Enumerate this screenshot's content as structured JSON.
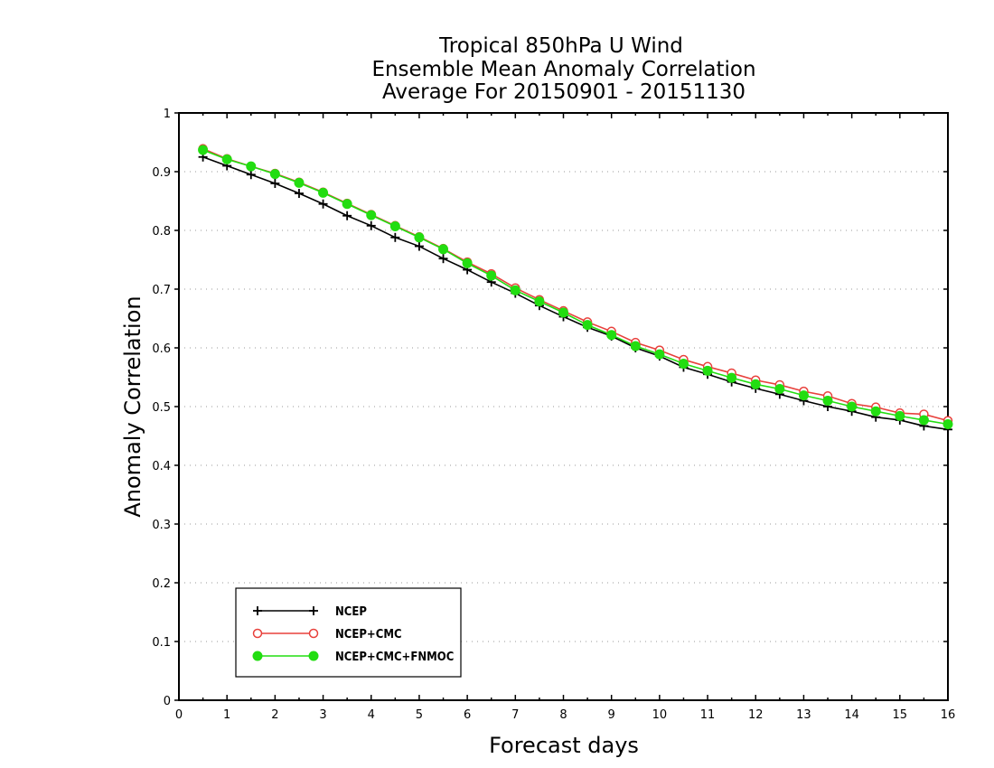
{
  "chart_data": {
    "type": "line",
    "title": [
      "Tropical 850hPa U Wind",
      "Ensemble Mean Anomaly Correlation",
      "Average For 20150901 - 20151130"
    ],
    "xlabel": "Forecast days",
    "ylabel": "Anomaly Correlation",
    "xlim": [
      0,
      16
    ],
    "ylim": [
      0,
      1
    ],
    "xticks": [
      0,
      1,
      2,
      3,
      4,
      5,
      6,
      7,
      8,
      9,
      10,
      11,
      12,
      13,
      14,
      15,
      16
    ],
    "yticks": [
      0,
      0.1,
      0.2,
      0.3,
      0.4,
      0.5,
      0.6,
      0.7,
      0.8,
      0.9,
      1
    ],
    "ytick_labels": [
      "0",
      "0.1",
      "0.2",
      "0.3",
      "0.4",
      "0.5",
      "0.6",
      "0.7",
      "0.8",
      "0.9",
      "1"
    ],
    "grid": "horizontal dotted",
    "legend_position": "bottom-left",
    "x": [
      0.5,
      1,
      1.5,
      2,
      2.5,
      3,
      3.5,
      4,
      4.5,
      5,
      5.5,
      6,
      6.5,
      7,
      7.5,
      8,
      8.5,
      9,
      9.5,
      10,
      10.5,
      11,
      11.5,
      12,
      12.5,
      13,
      13.5,
      14,
      14.5,
      15,
      15.5,
      16
    ],
    "series": [
      {
        "name": "NCEP",
        "color": "#000000",
        "marker": "plus",
        "values": [
          0.925,
          0.91,
          0.895,
          0.88,
          0.863,
          0.845,
          0.825,
          0.808,
          0.788,
          0.773,
          0.752,
          0.733,
          0.712,
          0.693,
          0.672,
          0.653,
          0.635,
          0.62,
          0.6,
          0.586,
          0.567,
          0.555,
          0.542,
          0.531,
          0.521,
          0.51,
          0.5,
          0.492,
          0.482,
          0.477,
          0.467,
          0.461
        ]
      },
      {
        "name": "NCEP+CMC",
        "color": "#e8413c",
        "marker": "open-circle",
        "values": [
          0.939,
          0.922,
          0.909,
          0.897,
          0.882,
          0.865,
          0.846,
          0.827,
          0.808,
          0.789,
          0.769,
          0.746,
          0.726,
          0.702,
          0.682,
          0.663,
          0.644,
          0.628,
          0.609,
          0.596,
          0.58,
          0.568,
          0.557,
          0.545,
          0.537,
          0.526,
          0.518,
          0.505,
          0.499,
          0.489,
          0.487,
          0.476
        ]
      },
      {
        "name": "NCEP+CMC+FNMOC",
        "color": "#22dd11",
        "marker": "filled-circle",
        "values": [
          0.937,
          0.921,
          0.909,
          0.896,
          0.881,
          0.864,
          0.845,
          0.826,
          0.807,
          0.788,
          0.768,
          0.744,
          0.723,
          0.698,
          0.679,
          0.66,
          0.639,
          0.622,
          0.603,
          0.589,
          0.573,
          0.561,
          0.549,
          0.538,
          0.53,
          0.519,
          0.51,
          0.5,
          0.492,
          0.484,
          0.477,
          0.47
        ]
      }
    ]
  }
}
